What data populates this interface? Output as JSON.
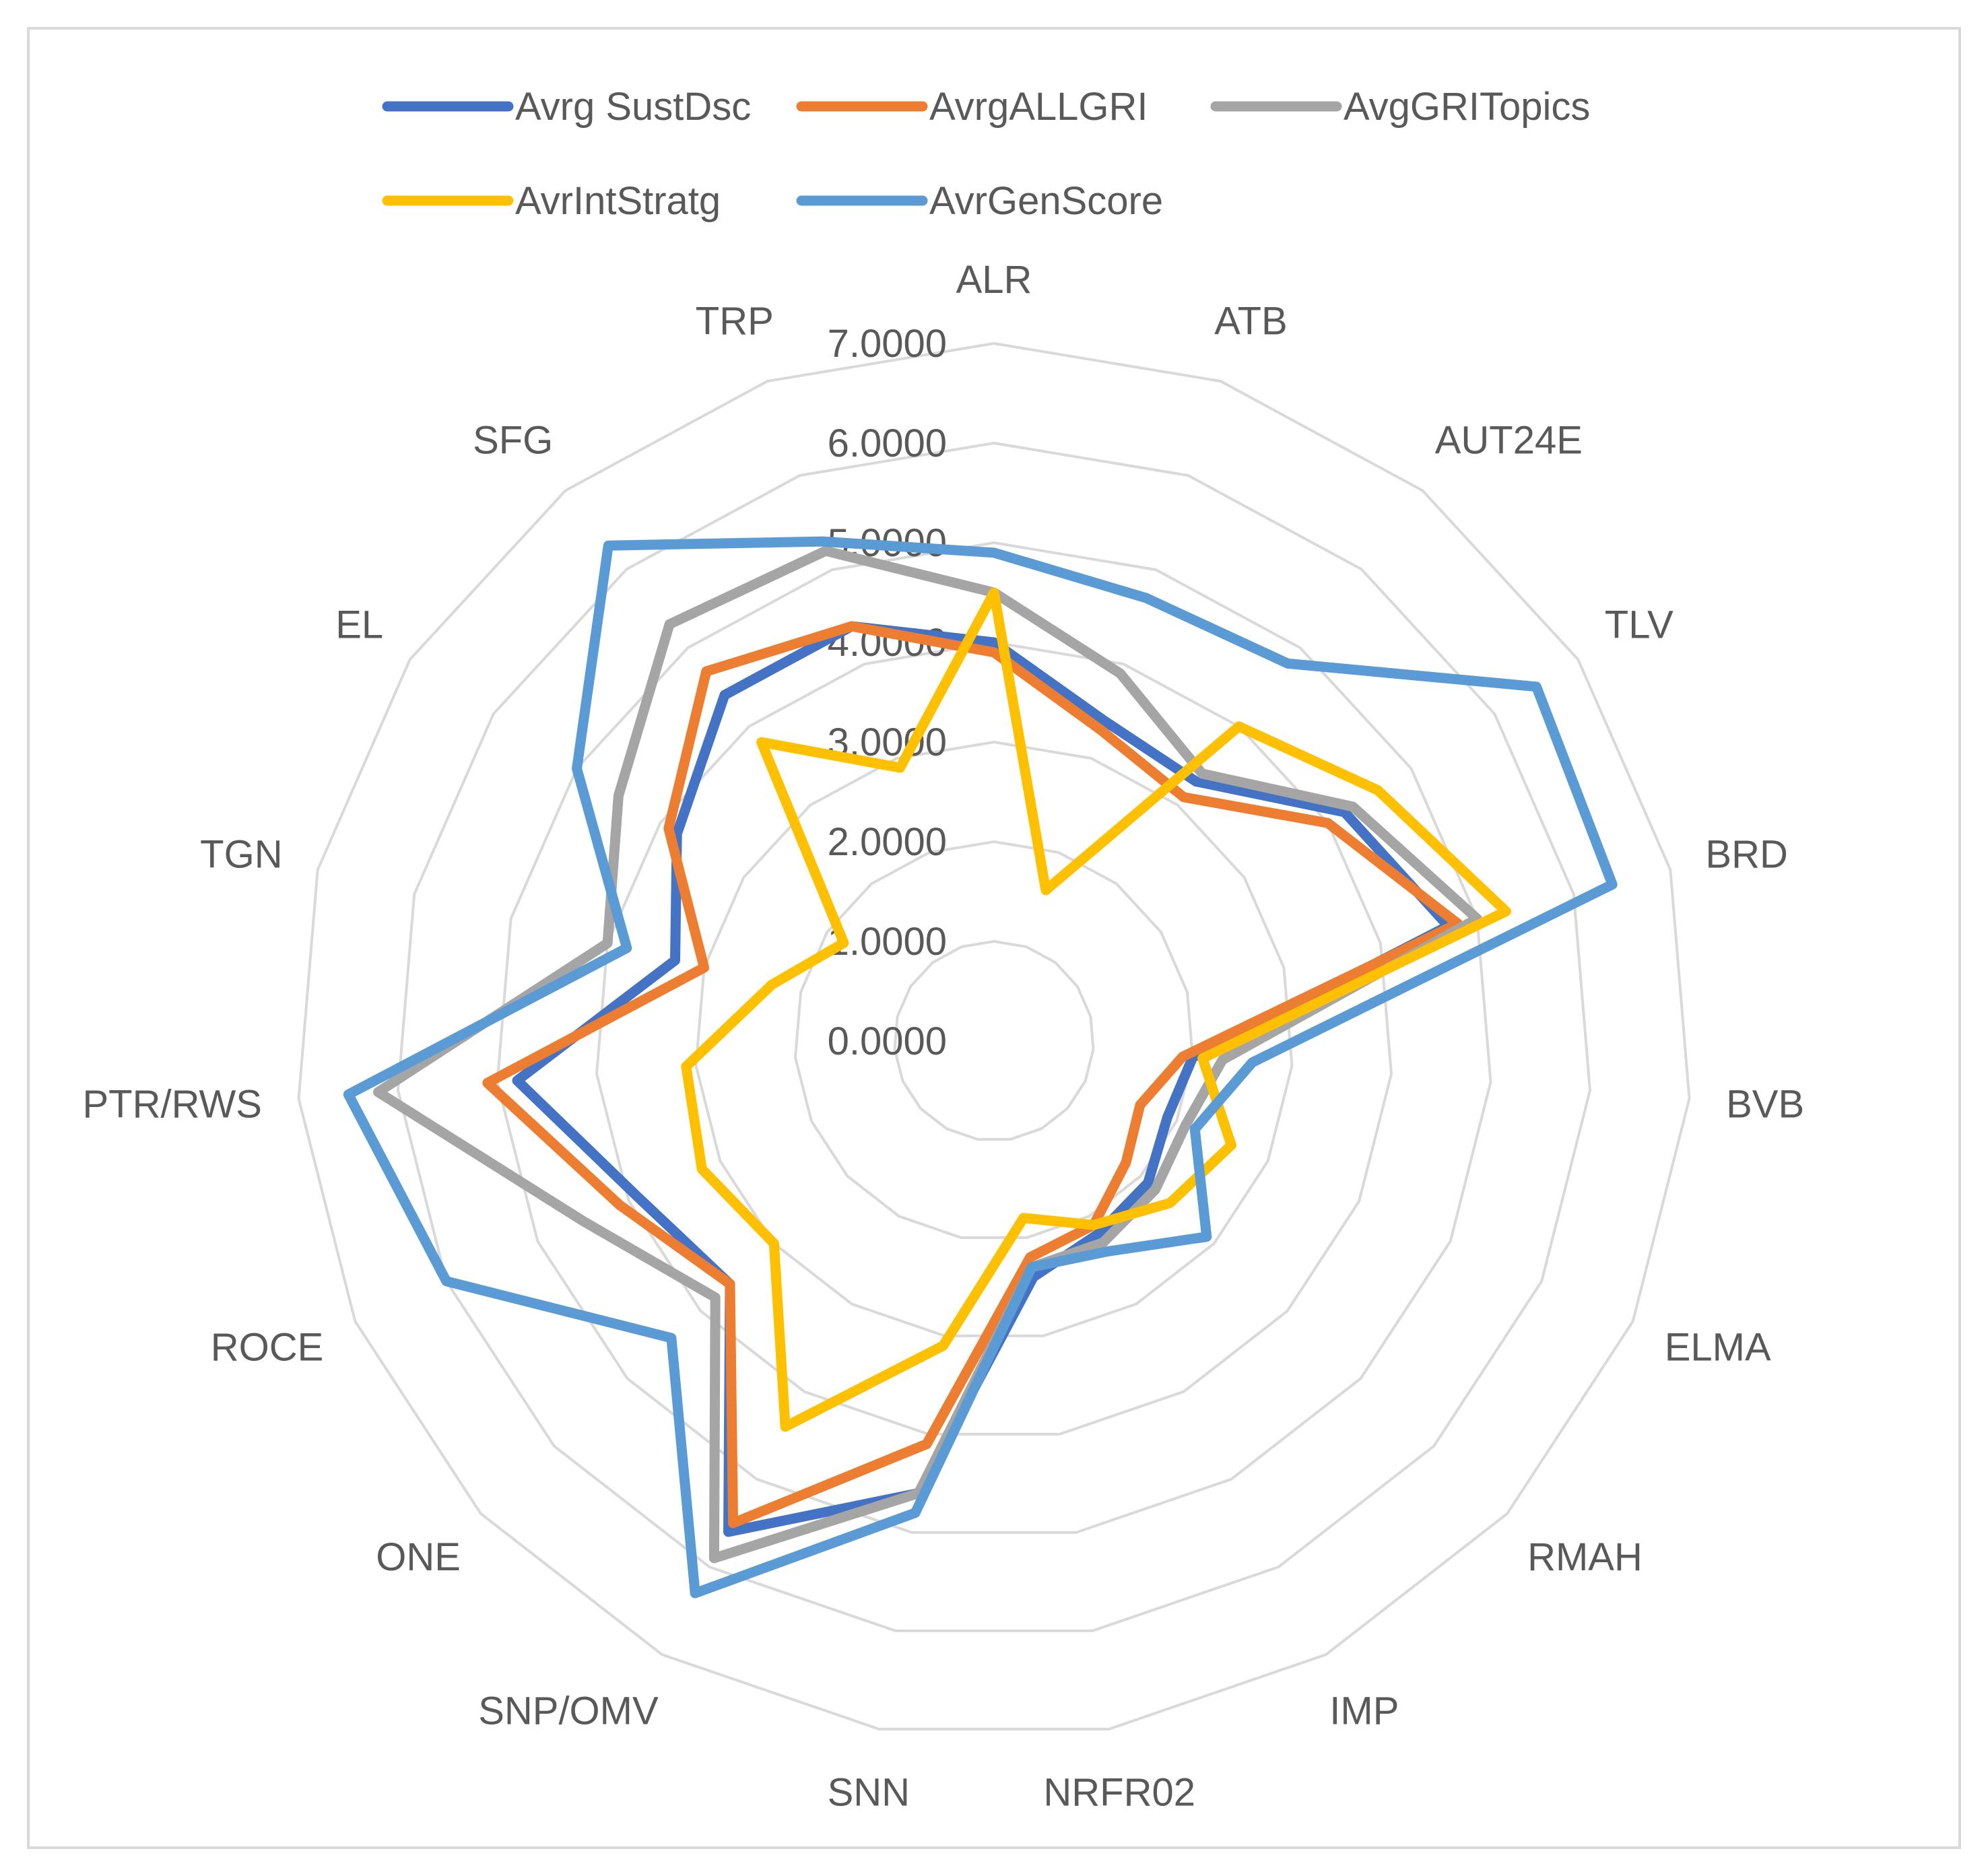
{
  "chart_data": {
    "type": "radar",
    "categories": [
      "ALR",
      "ATB",
      "AUT24E",
      "TLV",
      "BRD",
      "BVB",
      "ELMA",
      "RMAH",
      "IMP",
      "NRFR02",
      "SNN",
      "SNP/OMV",
      "ONE",
      "ROCE",
      "PTR/RWS",
      "TGN",
      "EL",
      "SFG",
      "TRP"
    ],
    "rmin": 0,
    "rmax": 7,
    "ticks": [
      0,
      1,
      2,
      3,
      4,
      5,
      6,
      7
    ],
    "tick_labels": [
      "0.0000",
      "1.0000",
      "2.0000",
      "3.0000",
      "4.0000",
      "5.0000",
      "6.0000",
      "7.0000"
    ],
    "series": [
      {
        "name": "Avrg SustDsc",
        "color": "#4472C4",
        "values": [
          4.0,
          3.4,
          3.3,
          4.2,
          4.7,
          2.0,
          1.9,
          2.1,
          2.2,
          2.4,
          4.6,
          5.6,
          3.6,
          3.9,
          4.8,
          3.3,
          3.8,
          4.4,
          4.4
        ]
      },
      {
        "name": "AvrgALLGRI",
        "color": "#ED7D31",
        "values": [
          3.9,
          3.3,
          3.1,
          4.0,
          4.8,
          1.9,
          1.6,
          1.8,
          2.1,
          2.2,
          4.1,
          5.5,
          3.6,
          4.1,
          5.1,
          3.0,
          3.9,
          4.7,
          4.4
        ]
      },
      {
        "name": "AvgGRITopics",
        "color": "#A5A5A5",
        "values": [
          4.5,
          3.9,
          3.4,
          4.3,
          5.0,
          2.3,
          2.1,
          2.2,
          2.3,
          2.3,
          4.6,
          5.9,
          3.8,
          4.5,
          6.2,
          4.0,
          4.5,
          5.3,
          5.2
        ]
      },
      {
        "name": "AvrIntStratg",
        "color": "#FFC000",
        "values": [
          4.5,
          1.6,
          4.0,
          4.6,
          5.3,
          2.1,
          2.6,
          2.4,
          2.1,
          1.8,
          3.1,
          4.4,
          3.0,
          3.2,
          3.1,
          2.3,
          1.8,
          3.8,
          2.9
        ]
      },
      {
        "name": "AvrGenScore",
        "color": "#5B9BD5",
        "values": [
          4.9,
          4.7,
          4.8,
          6.5,
          6.4,
          2.6,
          2.2,
          2.9,
          2.4,
          2.3,
          4.8,
          6.3,
          4.4,
          6.0,
          6.5,
          3.8,
          5.0,
          6.3,
          5.3
        ]
      }
    ]
  }
}
